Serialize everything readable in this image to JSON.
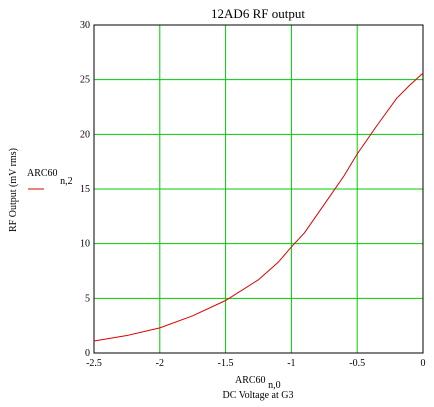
{
  "chart_data": {
    "type": "line",
    "title": "12AD6 RF output",
    "xlabel_expr": "ARC60",
    "xlabel_sub": "n,0",
    "xlabel": "DC Voltage at G3",
    "ylabel": "RF Output (mV rms)",
    "xlim": [
      -2.5,
      0
    ],
    "ylim": [
      0,
      30
    ],
    "xticks": [
      -2.5,
      -2,
      -1.5,
      -1,
      -0.5,
      0
    ],
    "xtick_labels": [
      "-2.5",
      "-2",
      "-1.5",
      "-1",
      "-0.5",
      "0"
    ],
    "yticks": [
      0,
      5,
      10,
      15,
      20,
      25,
      30
    ],
    "ytick_labels": [
      "0",
      "5",
      "10",
      "15",
      "20",
      "25",
      "30"
    ],
    "grid": true,
    "legend_position": "left",
    "series": [
      {
        "name": "ARC60",
        "name_sub": "n,2",
        "color": "#dd0000",
        "x": [
          -2.5,
          -2.25,
          -2.0,
          -1.75,
          -1.5,
          -1.25,
          -1.1,
          -1.0,
          -0.9,
          -0.75,
          -0.6,
          -0.5,
          -0.35,
          -0.2,
          -0.1,
          0.0
        ],
        "y": [
          1.1,
          1.6,
          2.3,
          3.4,
          4.8,
          6.7,
          8.3,
          9.7,
          11.0,
          13.6,
          16.2,
          18.2,
          20.8,
          23.3,
          24.5,
          25.6
        ]
      }
    ]
  },
  "colors": {
    "grid": "#00cc00",
    "axis": "#000000",
    "background": "#ffffff"
  }
}
